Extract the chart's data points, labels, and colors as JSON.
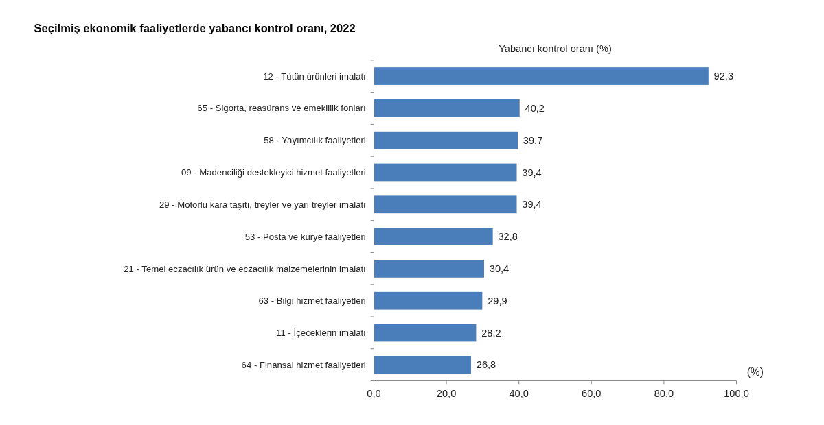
{
  "chart_data": {
    "type": "bar",
    "orientation": "horizontal",
    "title": "Seçilmiş ekonomik faaliyetlerde yabancı kontrol oranı, 2022",
    "subtitle": "Yabancı kontrol oranı (%)",
    "xlabel": "(%)",
    "categories": [
      "12 - Tütün ürünleri imalatı",
      "65 - Sigorta, reasürans ve emeklilik fonları",
      "58 - Yayımcılık faaliyetleri",
      "09 - Madenciliği destekleyici hizmet faaliyetleri",
      "29 - Motorlu kara taşıtı, treyler ve yarı treyler imalatı",
      "53 - Posta ve kurye faaliyetleri",
      "21 - Temel eczacılık ürün ve eczacılık malzemelerinin imalatı",
      "63 - Bilgi hizmet faaliyetleri",
      "11 - İçeceklerin imalatı",
      "64 - Finansal hizmet faaliyetleri"
    ],
    "values": [
      92.3,
      40.2,
      39.7,
      39.4,
      39.4,
      32.8,
      30.4,
      29.9,
      28.2,
      26.8
    ],
    "value_labels": [
      "92,3",
      "40,2",
      "39,7",
      "39,4",
      "39,4",
      "32,8",
      "30,4",
      "29,9",
      "28,2",
      "26,8"
    ],
    "color": "#4a7ebb",
    "xlim": [
      0,
      100
    ],
    "xticks": [
      {
        "value": 0,
        "label": "0,0"
      },
      {
        "value": 20,
        "label": "20,0"
      },
      {
        "value": 40,
        "label": "40,0"
      },
      {
        "value": 60,
        "label": "60,0"
      },
      {
        "value": 80,
        "label": "80,0"
      },
      {
        "value": 100,
        "label": "100,0"
      }
    ],
    "grid": false
  }
}
